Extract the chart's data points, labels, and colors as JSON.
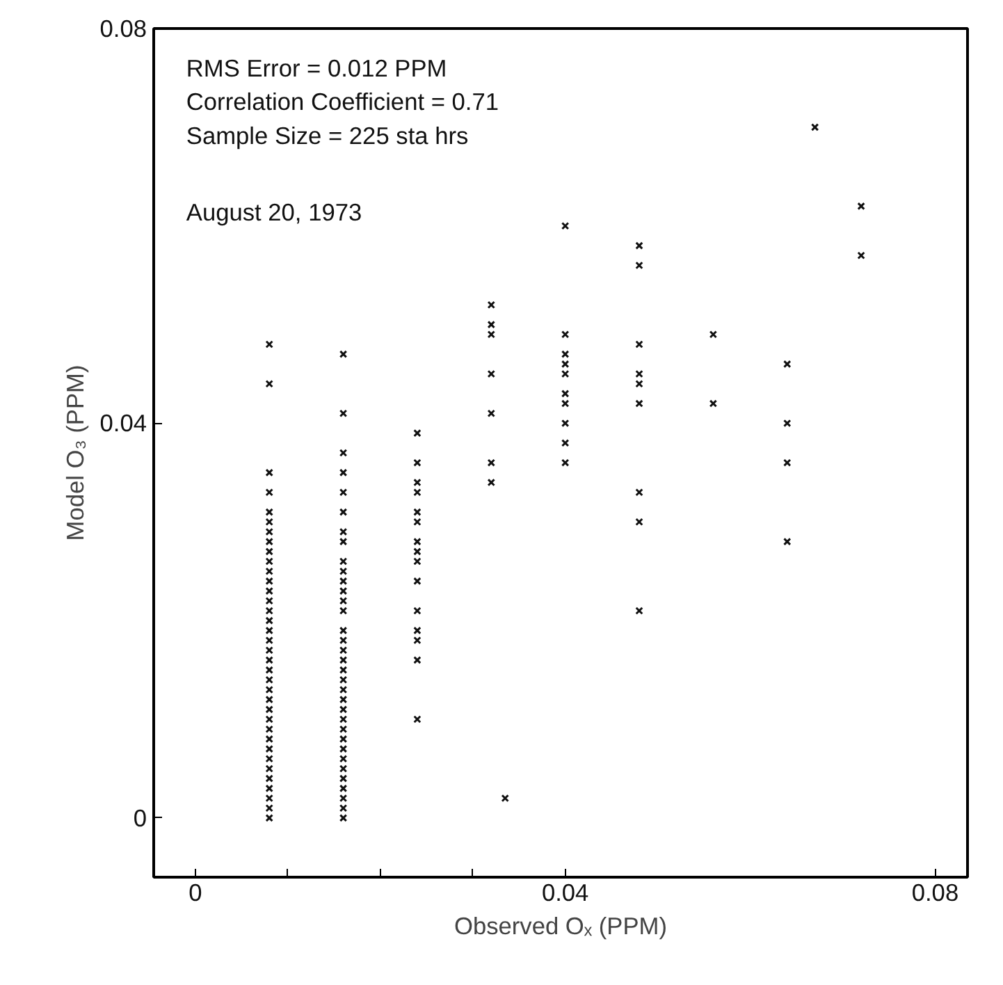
{
  "chart_data": {
    "type": "scatter",
    "xlabel": "Observed Oₓ (PPM)",
    "ylabel": "Model O₃ (PPM)",
    "annotations": [
      "RMS Error = 0.012 PPM",
      "Correlation Coefficient = 0.71",
      "Sample Size = 225 sta hrs",
      "August 20, 1973"
    ],
    "xlim": [
      -0.0045,
      0.0835
    ],
    "ylim": [
      -0.006,
      0.08
    ],
    "xticks": [
      0,
      {
        "value": 0.01,
        "label": null
      },
      {
        "value": 0.02,
        "label": null
      },
      {
        "value": 0.03,
        "label": null
      },
      0.04,
      0.08
    ],
    "yticks": [
      0,
      0.04,
      0.08
    ],
    "grid": false,
    "marker": "cross",
    "series": [
      {
        "color": "#111111",
        "x": [
          0.008,
          0.008,
          0.008,
          0.008,
          0.008,
          0.008,
          0.008,
          0.008,
          0.008,
          0.008,
          0.008,
          0.008,
          0.008,
          0.008,
          0.008,
          0.008,
          0.008,
          0.008,
          0.008,
          0.008,
          0.008,
          0.008,
          0.008,
          0.008,
          0.008,
          0.008,
          0.008,
          0.008,
          0.008,
          0.008,
          0.008,
          0.008,
          0.008,
          0.008,
          0.008,
          0.008,
          0.016,
          0.016,
          0.016,
          0.016,
          0.016,
          0.016,
          0.016,
          0.016,
          0.016,
          0.016,
          0.016,
          0.016,
          0.016,
          0.016,
          0.016,
          0.016,
          0.016,
          0.016,
          0.016,
          0.016,
          0.016,
          0.016,
          0.016,
          0.016,
          0.016,
          0.016,
          0.016,
          0.016,
          0.016,
          0.016,
          0.016,
          0.016,
          0.016,
          0.016,
          0.024,
          0.024,
          0.024,
          0.024,
          0.024,
          0.024,
          0.024,
          0.024,
          0.024,
          0.024,
          0.024,
          0.024,
          0.024,
          0.024,
          0.024,
          0.032,
          0.032,
          0.032,
          0.032,
          0.032,
          0.032,
          0.032,
          0.0335,
          0.04,
          0.04,
          0.04,
          0.04,
          0.04,
          0.04,
          0.04,
          0.04,
          0.04,
          0.04,
          0.048,
          0.048,
          0.048,
          0.048,
          0.048,
          0.048,
          0.048,
          0.048,
          0.048,
          0.056,
          0.056,
          0.064,
          0.064,
          0.064,
          0.064,
          0.067,
          0.072,
          0.072
        ],
        "values": [
          0.048,
          0.044,
          0.035,
          0.033,
          0.031,
          0.03,
          0.029,
          0.028,
          0.027,
          0.026,
          0.025,
          0.024,
          0.023,
          0.022,
          0.021,
          0.02,
          0.019,
          0.018,
          0.017,
          0.016,
          0.015,
          0.014,
          0.013,
          0.012,
          0.011,
          0.01,
          0.009,
          0.008,
          0.007,
          0.006,
          0.005,
          0.004,
          0.003,
          0.002,
          0.001,
          0,
          0.047,
          0.041,
          0.037,
          0.035,
          0.033,
          0.031,
          0.029,
          0.028,
          0.026,
          0.025,
          0.024,
          0.023,
          0.022,
          0.021,
          0.019,
          0.018,
          0.017,
          0.016,
          0.015,
          0.014,
          0.013,
          0.012,
          0.011,
          0.01,
          0.009,
          0.008,
          0.007,
          0.006,
          0.005,
          0.004,
          0.003,
          0.002,
          0.001,
          0,
          0.039,
          0.036,
          0.034,
          0.033,
          0.031,
          0.03,
          0.028,
          0.027,
          0.026,
          0.024,
          0.021,
          0.019,
          0.018,
          0.016,
          0.01,
          0.052,
          0.05,
          0.049,
          0.045,
          0.041,
          0.036,
          0.034,
          0.002,
          0.06,
          0.049,
          0.047,
          0.046,
          0.045,
          0.043,
          0.042,
          0.04,
          0.038,
          0.036,
          0.058,
          0.056,
          0.048,
          0.045,
          0.044,
          0.042,
          0.033,
          0.03,
          0.021,
          0.049,
          0.042,
          0.046,
          0.04,
          0.036,
          0.028,
          0.07,
          0.062,
          0.057
        ]
      }
    ]
  }
}
